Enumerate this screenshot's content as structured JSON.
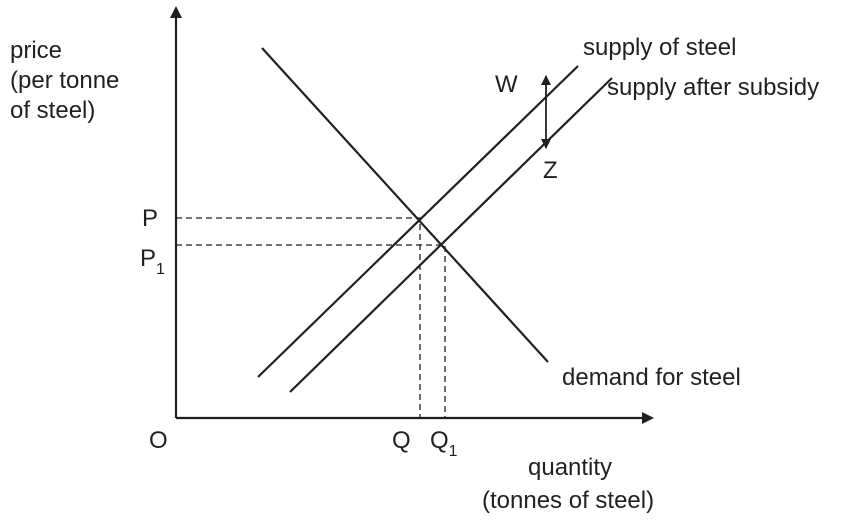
{
  "y_axis_label": [
    "price",
    "(per tonne",
    "of steel)"
  ],
  "x_axis_label": [
    "quantity",
    "(tonnes of steel)"
  ],
  "curves": {
    "supply": "supply of steel",
    "supply_after_subsidy": "supply after subsidy",
    "demand": "demand for steel"
  },
  "labels": {
    "p": {
      "text": "P"
    },
    "p1": {
      "text": "P",
      "subscript": "1"
    },
    "origin": "O",
    "q": {
      "text": "Q"
    },
    "q1": {
      "text": "Q",
      "subscript": "1"
    },
    "w": "W",
    "z": "Z"
  }
}
